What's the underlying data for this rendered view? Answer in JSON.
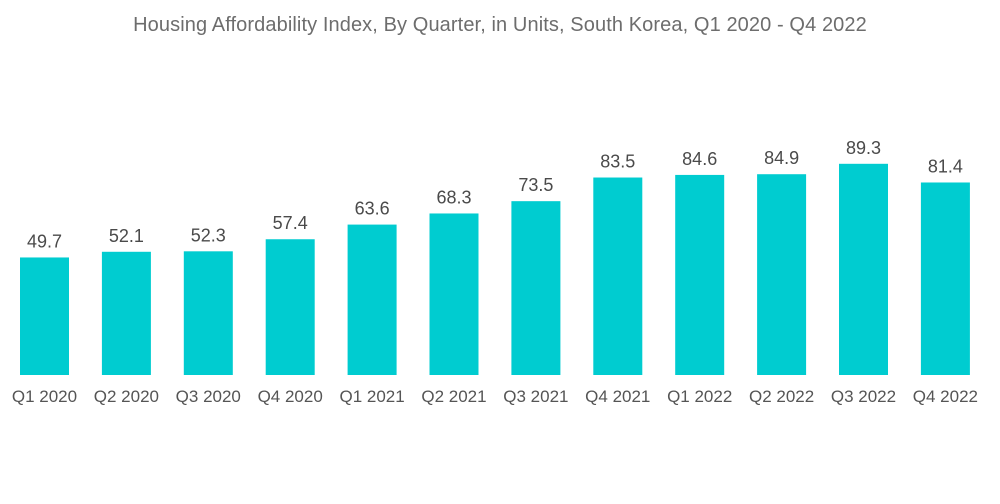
{
  "chart_data": {
    "type": "bar",
    "title": "Housing Affordability Index, By Quarter, in Units, South Korea, Q1 2020 - Q4 2022",
    "xlabel": "",
    "ylabel": "",
    "categories": [
      "Q1 2020",
      "Q2 2020",
      "Q3 2020",
      "Q4 2020",
      "Q1 2021",
      "Q2 2021",
      "Q3 2021",
      "Q4 2021",
      "Q1 2022",
      "Q2 2022",
      "Q3 2022",
      "Q4 2022"
    ],
    "values": [
      49.7,
      52.1,
      52.3,
      57.4,
      63.6,
      68.3,
      73.5,
      83.5,
      84.6,
      84.9,
      89.3,
      81.4
    ],
    "data_labels": [
      "49.7",
      "52.1",
      "52.3",
      "57.4",
      "63.6",
      "68.3",
      "73.5",
      "83.5",
      "84.6",
      "84.9",
      "89.3",
      "81.4"
    ],
    "ylim": [
      0,
      89.3
    ],
    "grid": false,
    "legend": "none",
    "bar_color": "#00ccd0"
  }
}
